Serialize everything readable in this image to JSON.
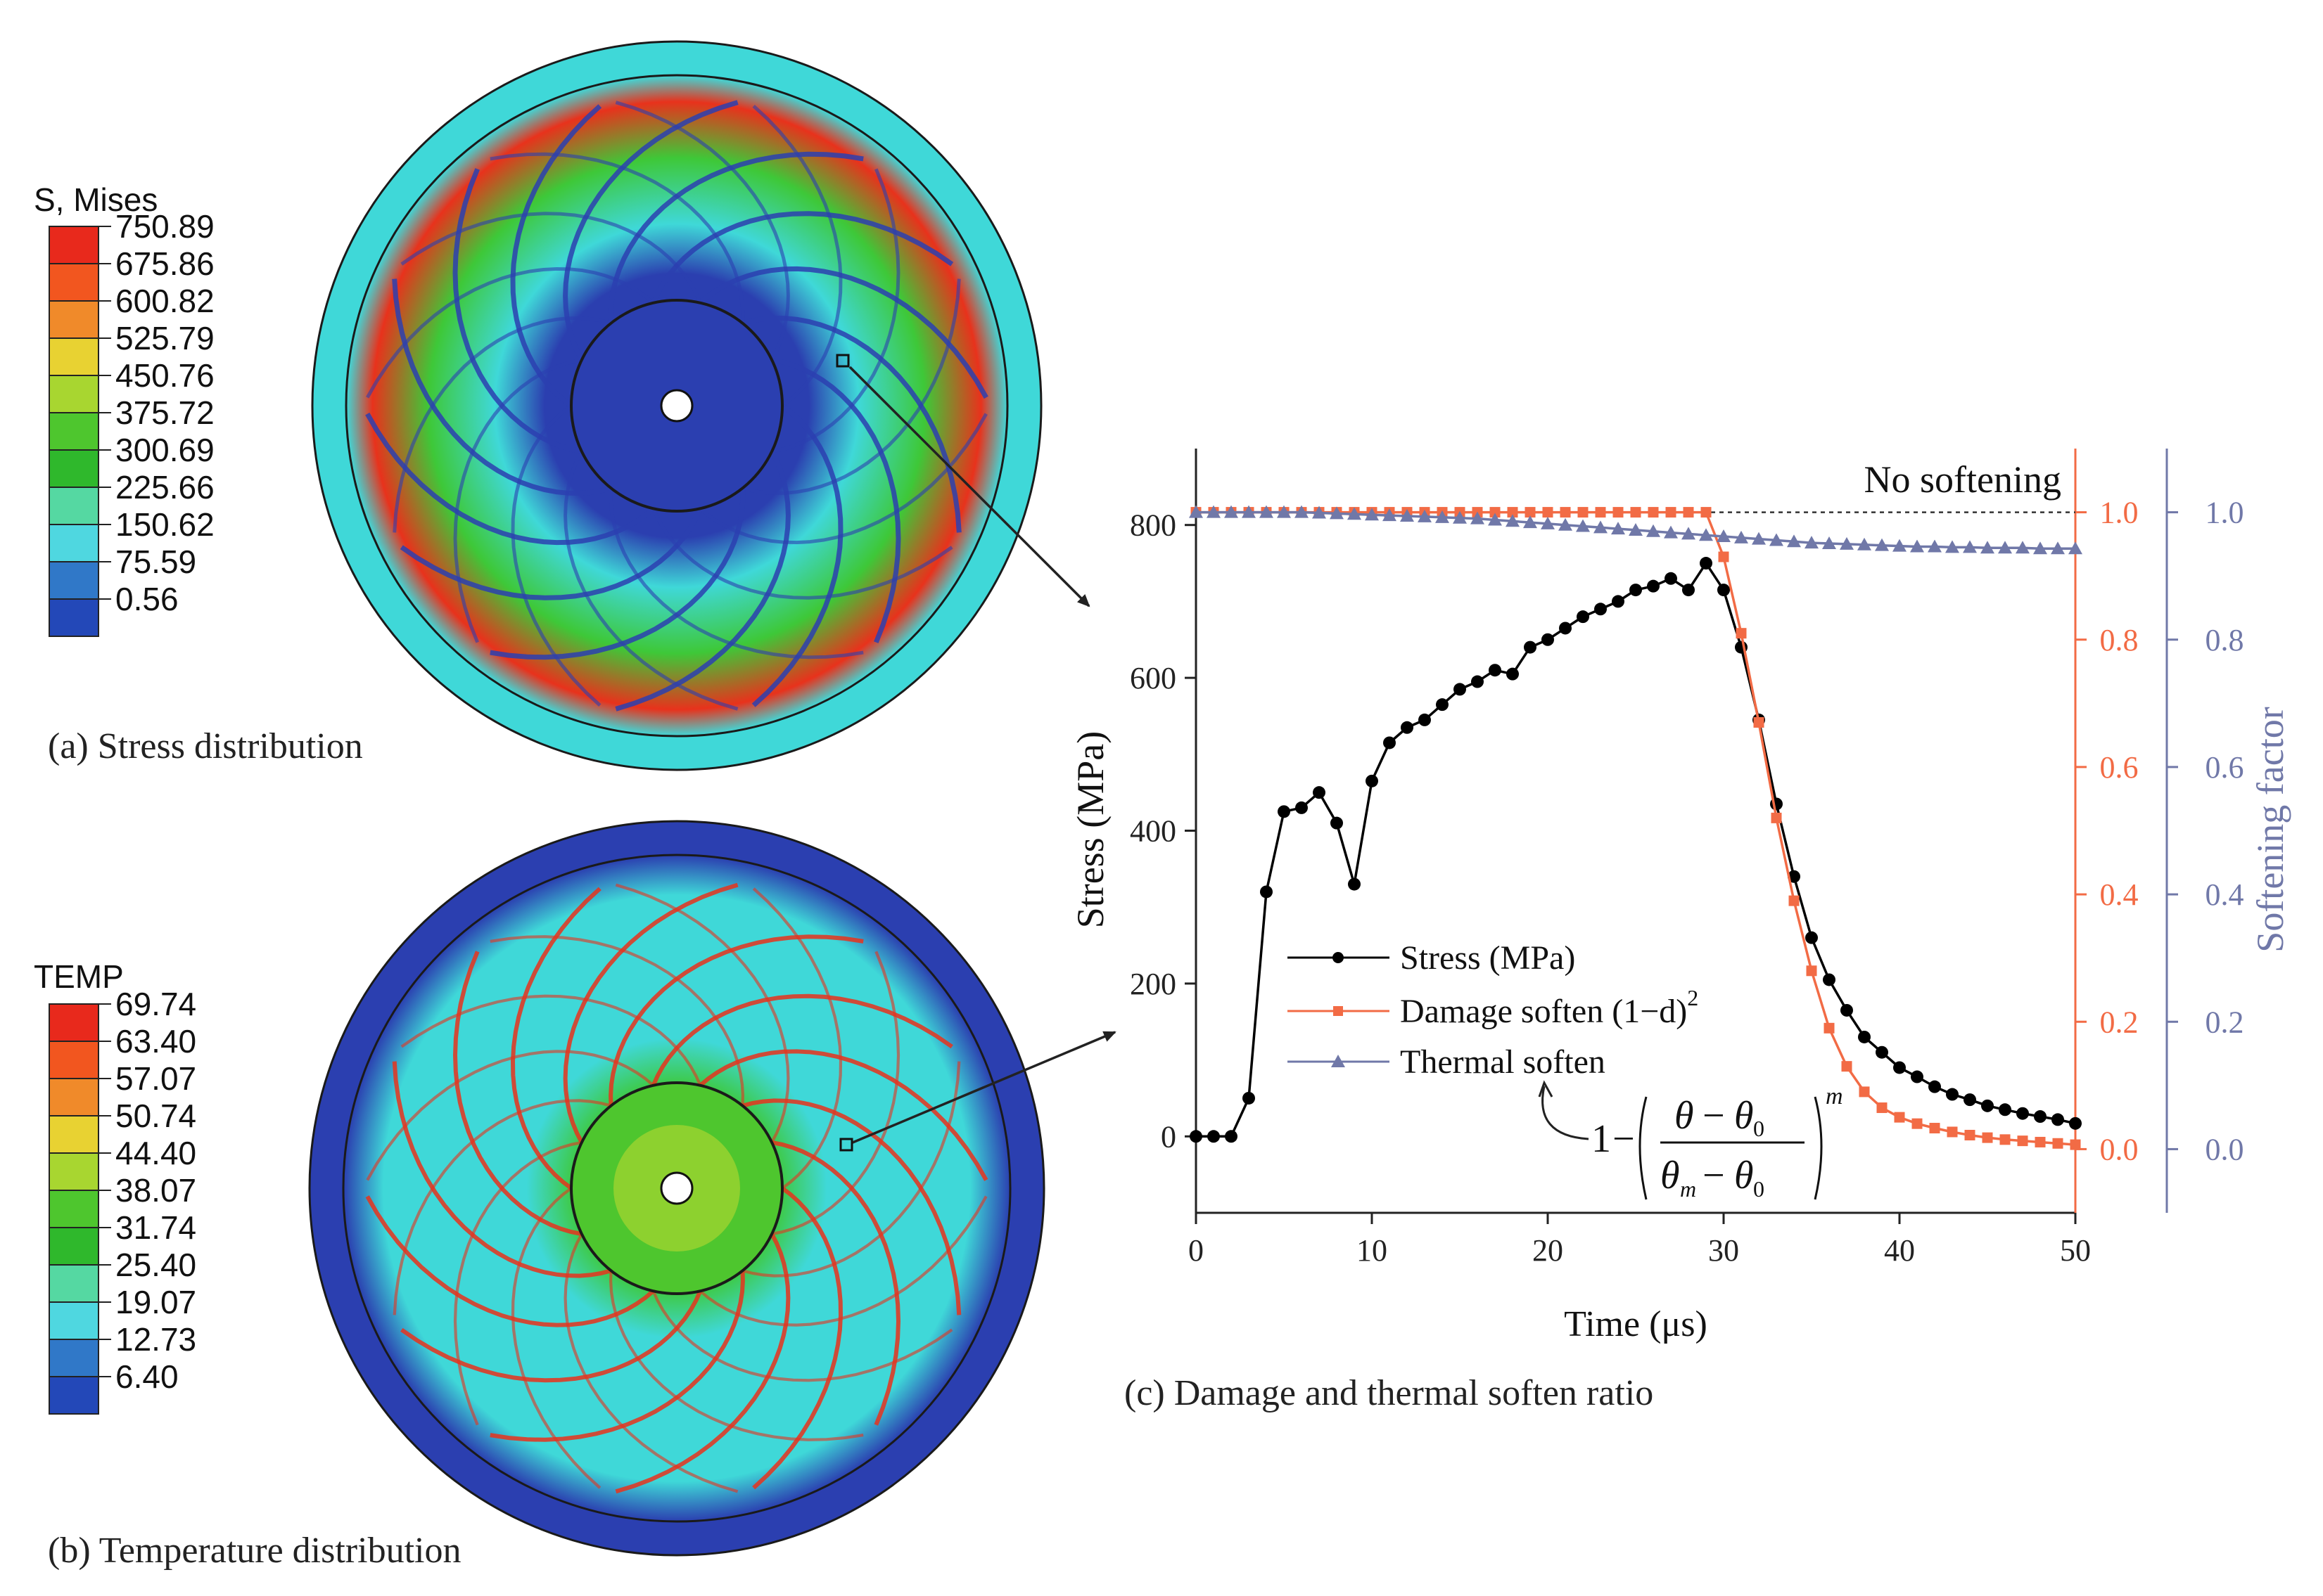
{
  "panel_a": {
    "caption": "(a) Stress distribution",
    "legend_title": "S, Mises",
    "legend_values": [
      "750.89",
      "675.86",
      "600.82",
      "525.79",
      "450.76",
      "375.72",
      "300.69",
      "225.66",
      "150.62",
      "75.59",
      "0.56"
    ]
  },
  "panel_b": {
    "caption": "(b) Temperature distribution",
    "legend_title": "TEMP",
    "legend_values": [
      "69.74",
      "63.40",
      "57.07",
      "50.74",
      "44.40",
      "38.07",
      "31.74",
      "25.40",
      "19.07",
      "12.73",
      "6.40"
    ]
  },
  "legend_colors": [
    "#e8291c",
    "#f2561f",
    "#f08a2a",
    "#e8d232",
    "#a8d630",
    "#4ec62e",
    "#2fb82c",
    "#55d8a2",
    "#4fd7e0",
    "#3078c8",
    "#2348b8"
  ],
  "colors": {
    "stress": "#000000",
    "damage": "#f26b45",
    "thermal": "#7078a8",
    "contour_blue": "#2b3fb0",
    "contour_cyan": "#3fd8d8",
    "contour_green": "#3ec838",
    "contour_red": "#e8321c"
  },
  "panel_c": {
    "caption": "(c) Damage and thermal soften ratio",
    "no_softening_label": "No softening",
    "formula": {
      "one": "1",
      "minus": "−",
      "theta": "θ",
      "theta0": "θ",
      "sub0": "0",
      "thetam": "θ",
      "subm": "m",
      "exp": "m"
    }
  },
  "chart_data": {
    "type": "line",
    "xlabel": "Time (μs)",
    "ylabel": "Stress (MPa)",
    "y2label": "",
    "y3label": "Softening factor",
    "xlim": [
      0,
      50
    ],
    "ylim": [
      -100,
      900
    ],
    "y2lim": [
      -0.1,
      1.1
    ],
    "y3lim": [
      -0.1,
      1.1
    ],
    "xticks": [
      "0",
      "10",
      "20",
      "30",
      "40",
      "50"
    ],
    "yticks": [
      "0",
      "200",
      "400",
      "600",
      "800"
    ],
    "y2ticks": [
      "0.0",
      "0.2",
      "0.4",
      "0.6",
      "0.8",
      "1.0"
    ],
    "y3ticks": [
      "0.0",
      "0.2",
      "0.4",
      "0.6",
      "0.8",
      "1.0"
    ],
    "series": [
      {
        "name": "Stress (MPa)",
        "axis": "left",
        "marker": "circle",
        "x": [
          0,
          1,
          2,
          3,
          4,
          5,
          6,
          7,
          8,
          9,
          10,
          11,
          12,
          13,
          14,
          15,
          16,
          17,
          18,
          19,
          20,
          21,
          22,
          23,
          24,
          25,
          26,
          27,
          28,
          29,
          30,
          31,
          32,
          33,
          34,
          35,
          36,
          37,
          38,
          39,
          40,
          41,
          42,
          43,
          44,
          45,
          46,
          47,
          48,
          49,
          50
        ],
        "values": [
          0,
          0,
          0,
          50,
          320,
          425,
          430,
          450,
          410,
          330,
          465,
          515,
          535,
          545,
          565,
          585,
          595,
          610,
          605,
          640,
          650,
          665,
          680,
          690,
          700,
          715,
          720,
          730,
          715,
          750,
          715,
          640,
          545,
          435,
          340,
          260,
          205,
          165,
          130,
          110,
          90,
          78,
          65,
          55,
          48,
          40,
          35,
          30,
          26,
          22,
          17
        ]
      },
      {
        "name": "Damage soften (1−d)²",
        "axis": "right",
        "marker": "square",
        "x": [
          0,
          1,
          2,
          3,
          4,
          5,
          6,
          7,
          8,
          9,
          10,
          11,
          12,
          13,
          14,
          15,
          16,
          17,
          18,
          19,
          20,
          21,
          22,
          23,
          24,
          25,
          26,
          27,
          28,
          29,
          30,
          31,
          32,
          33,
          34,
          35,
          36,
          37,
          38,
          39,
          40,
          41,
          42,
          43,
          44,
          45,
          46,
          47,
          48,
          49,
          50
        ],
        "values": [
          1,
          1,
          1,
          1,
          1,
          1,
          1,
          1,
          1,
          1,
          1,
          1,
          1,
          1,
          1,
          1,
          1,
          1,
          1,
          1,
          1,
          1,
          1,
          1,
          1,
          1,
          1,
          1,
          1,
          1,
          0.93,
          0.81,
          0.67,
          0.52,
          0.39,
          0.28,
          0.19,
          0.13,
          0.09,
          0.065,
          0.05,
          0.04,
          0.033,
          0.027,
          0.022,
          0.018,
          0.015,
          0.013,
          0.011,
          0.009,
          0.007
        ]
      },
      {
        "name": "Thermal soften",
        "axis": "right2",
        "marker": "triangle",
        "x": [
          0,
          1,
          2,
          3,
          4,
          5,
          6,
          7,
          8,
          9,
          10,
          11,
          12,
          13,
          14,
          15,
          16,
          17,
          18,
          19,
          20,
          21,
          22,
          23,
          24,
          25,
          26,
          27,
          28,
          29,
          30,
          31,
          32,
          33,
          34,
          35,
          36,
          37,
          38,
          39,
          40,
          41,
          42,
          43,
          44,
          45,
          46,
          47,
          48,
          49,
          50
        ],
        "values": [
          1,
          1,
          1,
          1,
          1,
          1,
          1,
          0.999,
          0.998,
          0.997,
          0.996,
          0.995,
          0.994,
          0.993,
          0.992,
          0.991,
          0.99,
          0.988,
          0.986,
          0.984,
          0.982,
          0.98,
          0.978,
          0.976,
          0.974,
          0.972,
          0.97,
          0.968,
          0.966,
          0.964,
          0.962,
          0.96,
          0.958,
          0.956,
          0.954,
          0.952,
          0.951,
          0.95,
          0.949,
          0.948,
          0.947,
          0.946,
          0.946,
          0.945,
          0.945,
          0.944,
          0.944,
          0.944,
          0.943,
          0.943,
          0.943
        ]
      }
    ],
    "legend": [
      {
        "label": "Stress (MPa)"
      },
      {
        "label": "Damage soften (1−d)"
      },
      {
        "label": "Thermal soften"
      }
    ],
    "legend_sup": "2",
    "reference_line": {
      "value": 1.0,
      "label": "No softening"
    }
  }
}
